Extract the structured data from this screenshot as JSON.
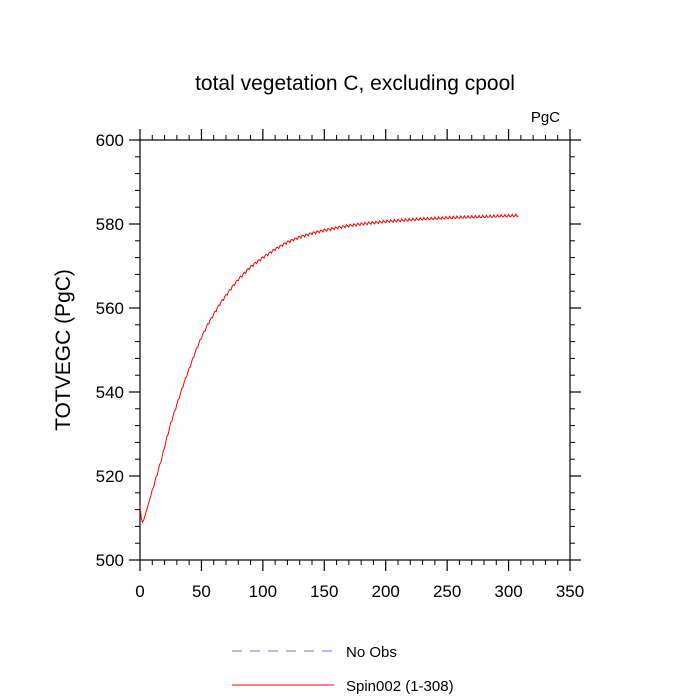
{
  "chart_data": {
    "type": "line",
    "title": "total vegetation C, excluding cpool",
    "units_label": "PgC",
    "xlabel": "",
    "ylabel": "TOTVEGC  (PgC)",
    "xlim": [
      0,
      350
    ],
    "ylim": [
      500,
      600
    ],
    "x_ticks": [
      0,
      50,
      100,
      150,
      200,
      250,
      300,
      350
    ],
    "y_ticks": [
      500,
      520,
      540,
      560,
      580,
      600
    ],
    "x_minor_step": 10,
    "y_minor_step": 4,
    "series": [
      {
        "name": "No Obs",
        "color": "#7070e0",
        "dash": "dashed",
        "x": [],
        "y": []
      },
      {
        "name": "Spin002 (1-308)",
        "color": "#ff0000",
        "dash": "solid",
        "x": [
          0,
          1,
          2,
          3,
          4,
          5,
          6,
          8,
          10,
          12,
          15,
          18,
          20,
          25,
          30,
          35,
          40,
          45,
          50,
          55,
          60,
          65,
          70,
          75,
          80,
          90,
          100,
          110,
          120,
          130,
          140,
          150,
          160,
          170,
          180,
          190,
          200,
          210,
          220,
          230,
          240,
          250,
          260,
          270,
          280,
          290,
          300,
          305,
          308
        ],
        "y": [
          513.0,
          510.0,
          509.0,
          509.5,
          510.5,
          511.5,
          512.5,
          514.5,
          516.5,
          518.5,
          521.5,
          524.5,
          527.0,
          532.5,
          537.0,
          541.5,
          545.5,
          549.5,
          553.0,
          556.0,
          558.5,
          561.0,
          563.0,
          565.0,
          566.8,
          569.8,
          572.0,
          574.0,
          575.7,
          576.9,
          577.8,
          578.5,
          579.1,
          579.6,
          580.0,
          580.3,
          580.6,
          580.8,
          581.0,
          581.2,
          581.3,
          581.45,
          581.55,
          581.65,
          581.75,
          581.85,
          581.95,
          582.0,
          582.0
        ]
      }
    ],
    "legend": [
      "No Obs",
      "Spin002 (1-308)"
    ],
    "legend_position": "bottom-center"
  }
}
